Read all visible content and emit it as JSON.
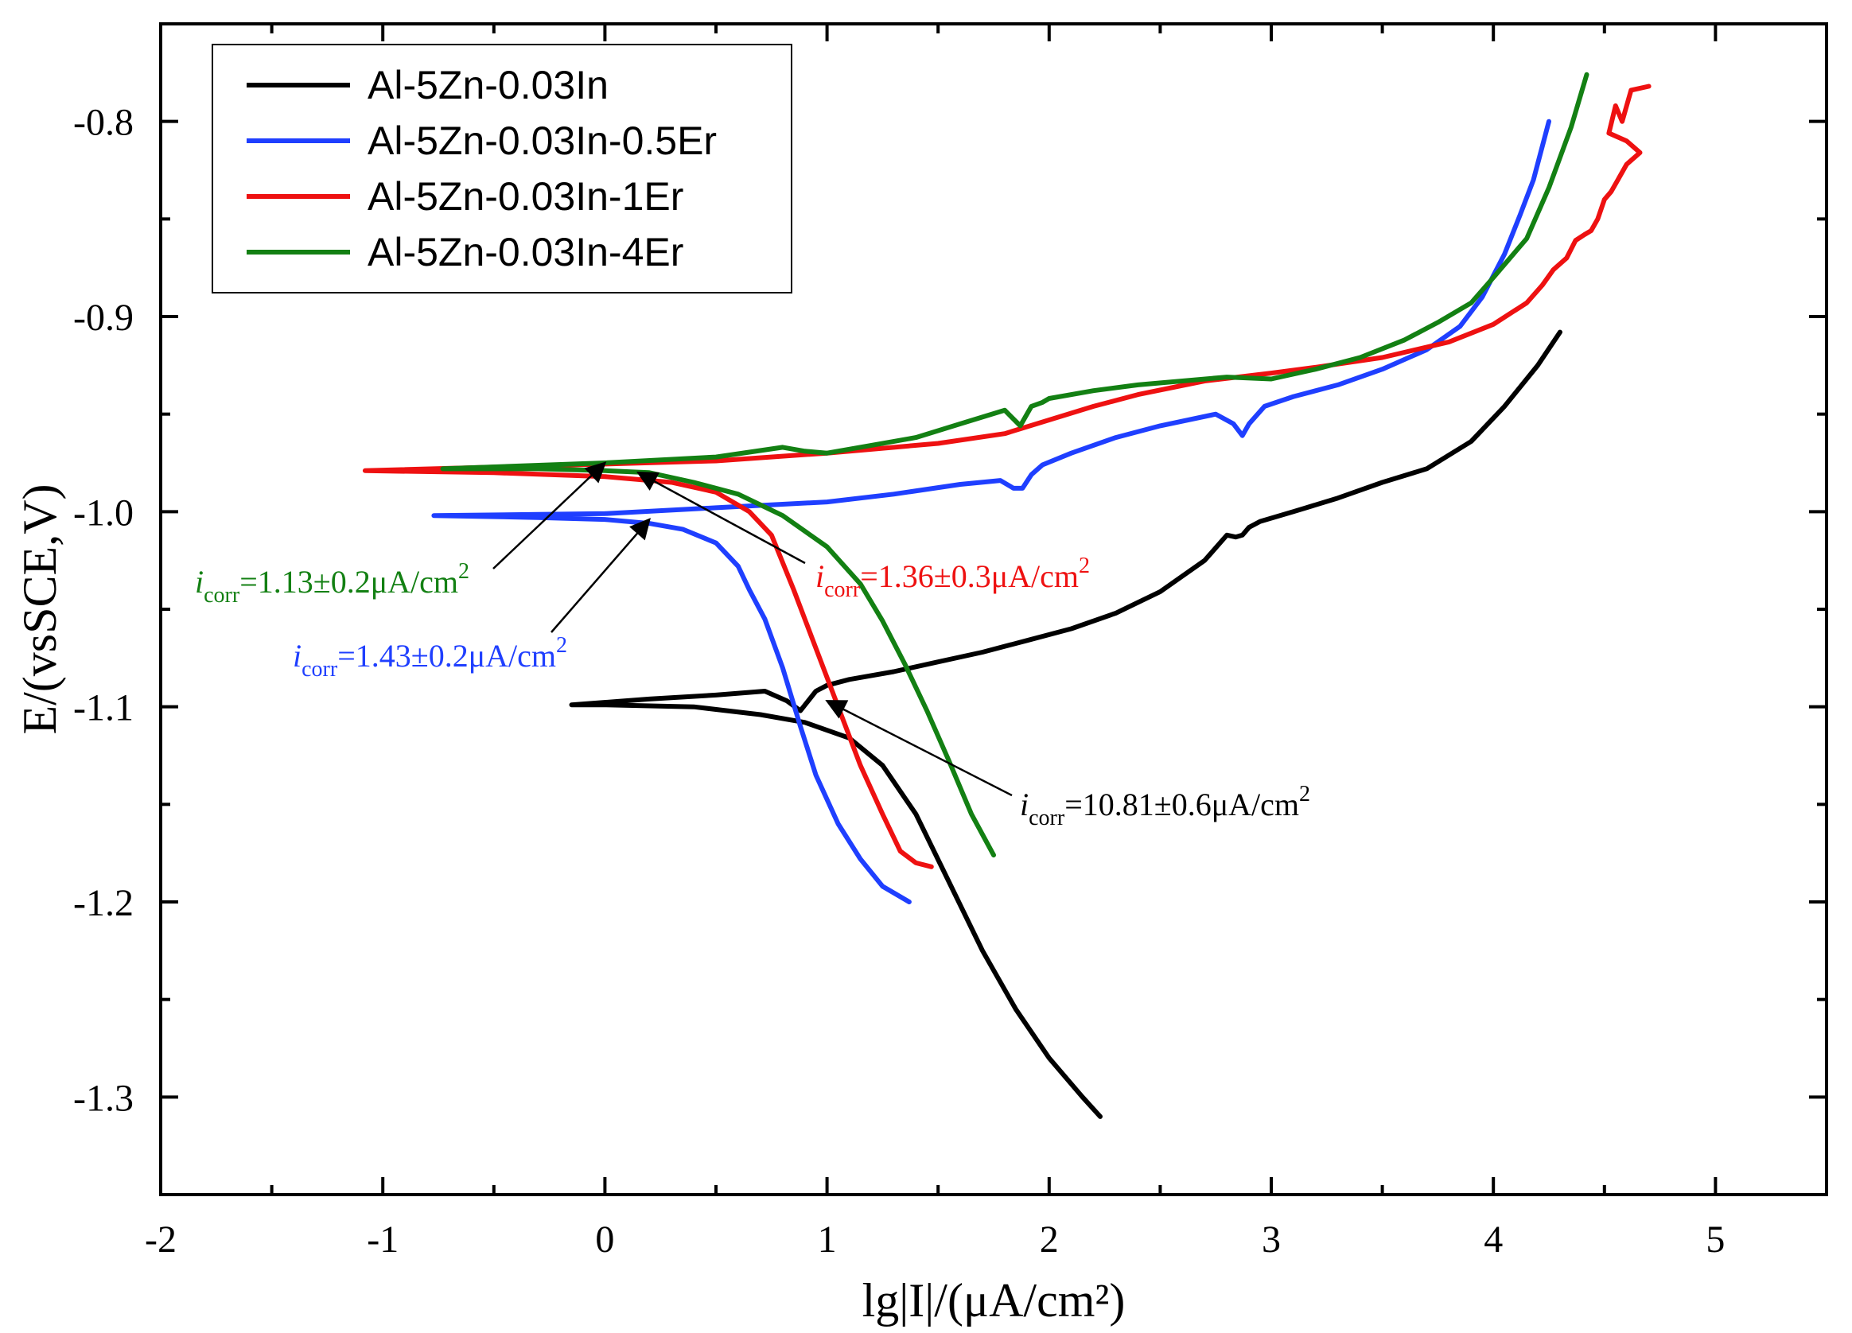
{
  "chart_data": {
    "type": "line",
    "title": "",
    "xlabel": "lg|I|/(μA/cm²)",
    "ylabel": "E/(vsSCE,V)",
    "xlim": [
      -2,
      5.5
    ],
    "ylim": [
      -1.35,
      -0.75
    ],
    "x_ticks": [
      -2,
      -1,
      0,
      1,
      2,
      3,
      4,
      5
    ],
    "x_tick_labels": [
      "-2",
      "-1",
      "0",
      "1",
      "2",
      "3",
      "4",
      "5"
    ],
    "y_ticks": [
      -0.8,
      -0.9,
      -1.0,
      -1.1,
      -1.2,
      -1.3
    ],
    "y_tick_labels": [
      "-0.8",
      "-0.9",
      "-1.0",
      "-1.1",
      "-1.2",
      "-1.3"
    ],
    "grid": false,
    "legend_position": "top-left",
    "series": [
      {
        "name": "Al-5Zn-0.03In",
        "color": "#000000",
        "points": [
          [
            4.3,
            -0.908
          ],
          [
            4.2,
            -0.925
          ],
          [
            4.05,
            -0.946
          ],
          [
            3.9,
            -0.964
          ],
          [
            3.7,
            -0.978
          ],
          [
            3.5,
            -0.985
          ],
          [
            3.3,
            -0.993
          ],
          [
            3.1,
            -1.0
          ],
          [
            2.95,
            -1.005
          ],
          [
            2.9,
            -1.008
          ],
          [
            2.87,
            -1.012
          ],
          [
            2.84,
            -1.013
          ],
          [
            2.8,
            -1.012
          ],
          [
            2.7,
            -1.025
          ],
          [
            2.5,
            -1.041
          ],
          [
            2.3,
            -1.052
          ],
          [
            2.1,
            -1.06
          ],
          [
            1.9,
            -1.066
          ],
          [
            1.7,
            -1.072
          ],
          [
            1.5,
            -1.077
          ],
          [
            1.3,
            -1.082
          ],
          [
            1.1,
            -1.086
          ],
          [
            1.0,
            -1.089
          ],
          [
            0.95,
            -1.092
          ],
          [
            0.88,
            -1.102
          ],
          [
            0.82,
            -1.097
          ],
          [
            0.72,
            -1.092
          ],
          [
            0.5,
            -1.094
          ],
          [
            0.2,
            -1.096
          ],
          [
            -0.15,
            -1.099
          ],
          [
            0.0,
            -1.099
          ],
          [
            0.4,
            -1.1
          ],
          [
            0.7,
            -1.104
          ],
          [
            0.9,
            -1.108
          ],
          [
            1.1,
            -1.116
          ],
          [
            1.25,
            -1.13
          ],
          [
            1.4,
            -1.155
          ],
          [
            1.55,
            -1.19
          ],
          [
            1.7,
            -1.225
          ],
          [
            1.85,
            -1.255
          ],
          [
            2.0,
            -1.28
          ],
          [
            2.15,
            -1.3
          ],
          [
            2.23,
            -1.31
          ]
        ]
      },
      {
        "name": "Al-5Zn-0.03In-0.5Er",
        "color": "#1f3fff",
        "points": [
          [
            4.25,
            -0.8
          ],
          [
            4.18,
            -0.83
          ],
          [
            4.12,
            -0.848
          ],
          [
            4.05,
            -0.868
          ],
          [
            3.95,
            -0.89
          ],
          [
            3.85,
            -0.905
          ],
          [
            3.7,
            -0.917
          ],
          [
            3.5,
            -0.927
          ],
          [
            3.3,
            -0.935
          ],
          [
            3.1,
            -0.941
          ],
          [
            2.97,
            -0.946
          ],
          [
            2.9,
            -0.955
          ],
          [
            2.87,
            -0.961
          ],
          [
            2.83,
            -0.955
          ],
          [
            2.75,
            -0.95
          ],
          [
            2.5,
            -0.956
          ],
          [
            2.3,
            -0.962
          ],
          [
            2.1,
            -0.97
          ],
          [
            1.97,
            -0.976
          ],
          [
            1.92,
            -0.981
          ],
          [
            1.88,
            -0.988
          ],
          [
            1.84,
            -0.988
          ],
          [
            1.78,
            -0.984
          ],
          [
            1.6,
            -0.986
          ],
          [
            1.3,
            -0.991
          ],
          [
            1.0,
            -0.995
          ],
          [
            0.5,
            -0.998
          ],
          [
            0.0,
            -1.001
          ],
          [
            -0.77,
            -1.002
          ],
          [
            -0.3,
            -1.003
          ],
          [
            0.0,
            -1.004
          ],
          [
            0.2,
            -1.006
          ],
          [
            0.35,
            -1.009
          ],
          [
            0.5,
            -1.016
          ],
          [
            0.6,
            -1.028
          ],
          [
            0.65,
            -1.04
          ],
          [
            0.72,
            -1.055
          ],
          [
            0.8,
            -1.08
          ],
          [
            0.88,
            -1.11
          ],
          [
            0.95,
            -1.135
          ],
          [
            1.05,
            -1.16
          ],
          [
            1.15,
            -1.178
          ],
          [
            1.25,
            -1.192
          ],
          [
            1.37,
            -1.2
          ]
        ]
      },
      {
        "name": "Al-5Zn-0.03In-1Er",
        "color": "#ee1111",
        "points": [
          [
            4.7,
            -0.782
          ],
          [
            4.62,
            -0.784
          ],
          [
            4.58,
            -0.8
          ],
          [
            4.55,
            -0.792
          ],
          [
            4.52,
            -0.806
          ],
          [
            4.6,
            -0.81
          ],
          [
            4.66,
            -0.816
          ],
          [
            4.6,
            -0.822
          ],
          [
            4.56,
            -0.83
          ],
          [
            4.53,
            -0.836
          ],
          [
            4.5,
            -0.84
          ],
          [
            4.47,
            -0.85
          ],
          [
            4.44,
            -0.856
          ],
          [
            4.41,
            -0.858
          ],
          [
            4.37,
            -0.861
          ],
          [
            4.33,
            -0.87
          ],
          [
            4.27,
            -0.876
          ],
          [
            4.22,
            -0.884
          ],
          [
            4.15,
            -0.893
          ],
          [
            4.0,
            -0.904
          ],
          [
            3.8,
            -0.913
          ],
          [
            3.5,
            -0.921
          ],
          [
            3.2,
            -0.926
          ],
          [
            3.0,
            -0.929
          ],
          [
            2.7,
            -0.933
          ],
          [
            2.4,
            -0.94
          ],
          [
            2.2,
            -0.946
          ],
          [
            2.0,
            -0.953
          ],
          [
            1.8,
            -0.96
          ],
          [
            1.5,
            -0.965
          ],
          [
            1.0,
            -0.97
          ],
          [
            0.5,
            -0.974
          ],
          [
            -1.08,
            -0.979
          ],
          [
            -0.5,
            -0.98
          ],
          [
            0.0,
            -0.982
          ],
          [
            0.3,
            -0.985
          ],
          [
            0.5,
            -0.99
          ],
          [
            0.65,
            -1.0
          ],
          [
            0.75,
            -1.012
          ],
          [
            0.85,
            -1.04
          ],
          [
            0.95,
            -1.07
          ],
          [
            1.05,
            -1.1
          ],
          [
            1.15,
            -1.13
          ],
          [
            1.25,
            -1.155
          ],
          [
            1.33,
            -1.174
          ],
          [
            1.4,
            -1.18
          ],
          [
            1.47,
            -1.182
          ]
        ]
      },
      {
        "name": "Al-5Zn-0.03In-4Er",
        "color": "#138013",
        "points": [
          [
            4.42,
            -0.776
          ],
          [
            4.35,
            -0.803
          ],
          [
            4.25,
            -0.834
          ],
          [
            4.15,
            -0.86
          ],
          [
            4.0,
            -0.88
          ],
          [
            3.9,
            -0.893
          ],
          [
            3.75,
            -0.903
          ],
          [
            3.6,
            -0.912
          ],
          [
            3.4,
            -0.921
          ],
          [
            3.2,
            -0.927
          ],
          [
            3.0,
            -0.932
          ],
          [
            2.8,
            -0.931
          ],
          [
            2.6,
            -0.933
          ],
          [
            2.4,
            -0.935
          ],
          [
            2.2,
            -0.938
          ],
          [
            2.0,
            -0.942
          ],
          [
            1.97,
            -0.944
          ],
          [
            1.92,
            -0.946
          ],
          [
            1.87,
            -0.956
          ],
          [
            1.8,
            -0.948
          ],
          [
            1.6,
            -0.955
          ],
          [
            1.4,
            -0.962
          ],
          [
            1.2,
            -0.966
          ],
          [
            1.0,
            -0.97
          ],
          [
            0.9,
            -0.969
          ],
          [
            0.8,
            -0.967
          ],
          [
            0.5,
            -0.972
          ],
          [
            0.0,
            -0.975
          ],
          [
            -0.73,
            -0.978
          ],
          [
            -0.3,
            -0.978
          ],
          [
            0.0,
            -0.979
          ],
          [
            0.2,
            -0.98
          ],
          [
            0.4,
            -0.985
          ],
          [
            0.6,
            -0.991
          ],
          [
            0.8,
            -1.002
          ],
          [
            1.0,
            -1.018
          ],
          [
            1.15,
            -1.037
          ],
          [
            1.25,
            -1.056
          ],
          [
            1.35,
            -1.078
          ],
          [
            1.45,
            -1.102
          ],
          [
            1.55,
            -1.128
          ],
          [
            1.65,
            -1.155
          ],
          [
            1.75,
            -1.176
          ]
        ]
      }
    ],
    "annotations": [
      {
        "base": "i",
        "sub": "corr",
        "value": "=1.13±0.2μA/cm",
        "sup": "2",
        "color": "#138013",
        "target": [
          0.0,
          -0.975
        ]
      },
      {
        "base": "i",
        "sub": "corr",
        "value": "=1.43±0.2μA/cm",
        "sup": "2",
        "color": "#1f3fff",
        "target": [
          0.2,
          -1.004
        ]
      },
      {
        "base": "i",
        "sub": "corr",
        "value": "=1.36±0.3μA/cm",
        "sup": "2",
        "color": "#ee1111",
        "target": [
          0.15,
          -0.98
        ]
      },
      {
        "base": "i",
        "sub": "corr",
        "value": "=10.81±0.6μA/cm",
        "sup": "2",
        "color": "#000000",
        "target": [
          1.0,
          -1.097
        ]
      }
    ]
  }
}
